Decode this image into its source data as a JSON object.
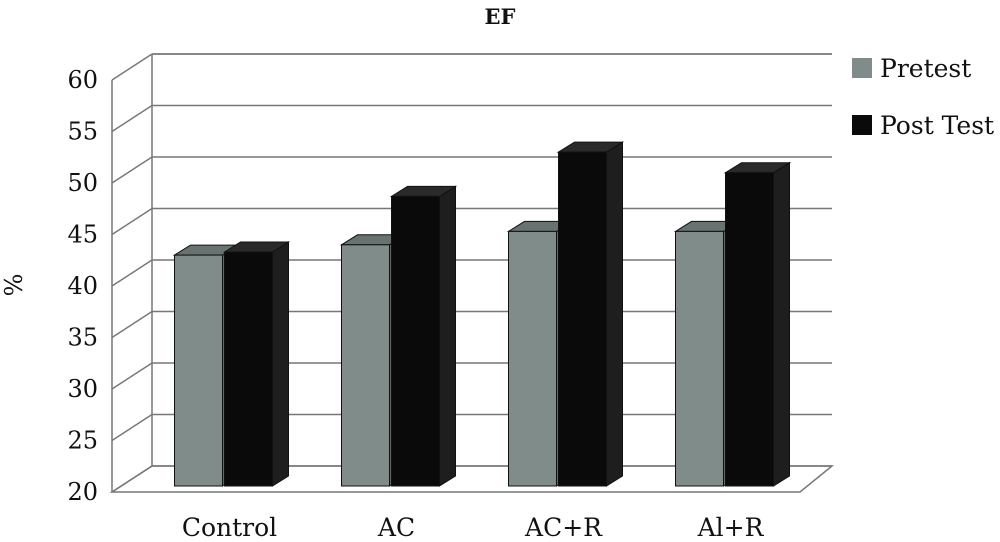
{
  "chart_data": {
    "type": "bar",
    "title": "EF",
    "ylabel": "%",
    "xlabel": "",
    "ylim": [
      20,
      60
    ],
    "yticks": [
      "20",
      "25",
      "30",
      "35",
      "40",
      "45",
      "50",
      "55",
      "60"
    ],
    "categories": [
      "Control",
      "AC",
      "AC+R",
      "Al+R"
    ],
    "series": [
      {
        "name": "Pretest",
        "values": [
          43,
          44,
          45.3,
          45.3
        ],
        "color": "#7f8c8a"
      },
      {
        "name": "Post Test",
        "values": [
          43.3,
          48.7,
          53,
          51
        ],
        "color": "#0a0a0a"
      }
    ],
    "grid": true,
    "legend_position": "right",
    "style": "3d"
  }
}
